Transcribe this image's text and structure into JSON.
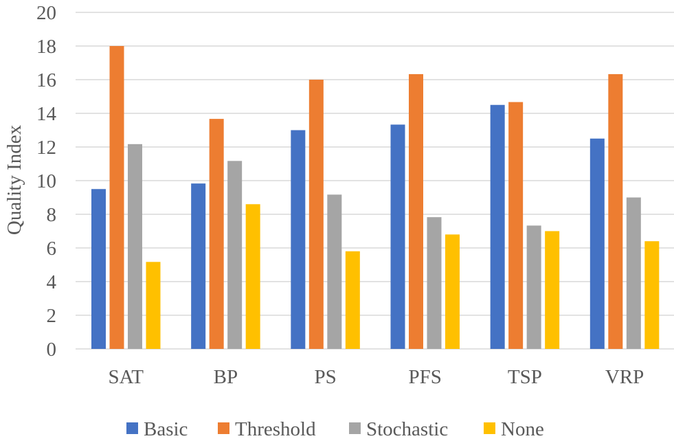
{
  "chart_data": {
    "type": "bar",
    "title": "",
    "xlabel": "",
    "ylabel": "Quality Index",
    "ylim": [
      0,
      20
    ],
    "yticks": [
      0,
      2,
      4,
      6,
      8,
      10,
      12,
      14,
      16,
      18,
      20
    ],
    "ytick_labels": [
      "0",
      "2",
      "4",
      "6",
      "8",
      "10",
      "12",
      "14",
      "16",
      "18",
      "20"
    ],
    "grid": true,
    "legend_position": "bottom",
    "categories": [
      "SAT",
      "BP",
      "PS",
      "PFS",
      "TSP",
      "VRP"
    ],
    "series": [
      {
        "name": "Basic",
        "color": "#4472c4",
        "values": [
          9.5,
          9.83,
          13.0,
          13.33,
          14.5,
          12.5
        ]
      },
      {
        "name": "Threshold",
        "color": "#ed7d31",
        "values": [
          18.0,
          13.67,
          16.0,
          16.33,
          14.67,
          16.33
        ]
      },
      {
        "name": "Stochastic",
        "color": "#a5a5a5",
        "values": [
          12.17,
          11.17,
          9.17,
          7.83,
          7.33,
          9.0
        ]
      },
      {
        "name": "None",
        "color": "#ffc000",
        "values": [
          5.17,
          8.6,
          5.8,
          6.8,
          7.0,
          6.4
        ]
      }
    ]
  }
}
